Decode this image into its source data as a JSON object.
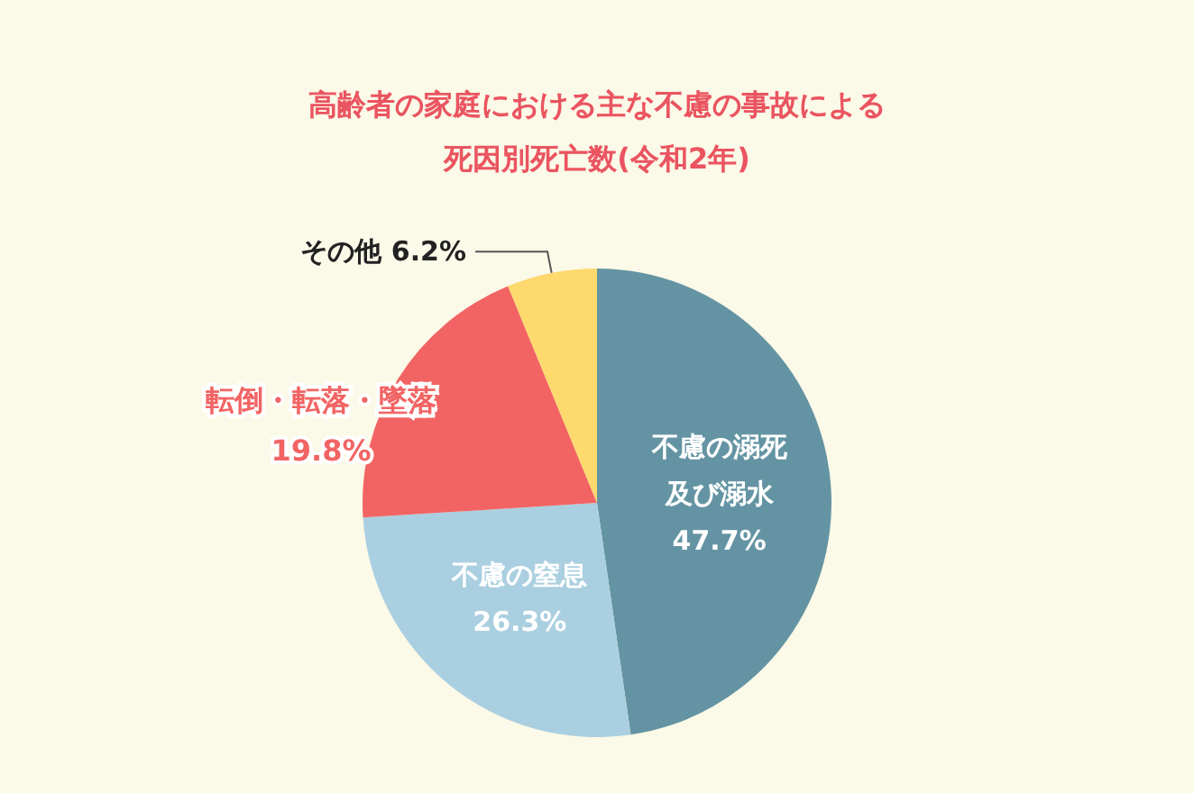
{
  "chart_data": {
    "type": "pie",
    "title": "高齢者の家庭における主な不慮の事故による死因別死亡数(令和2年)",
    "categories": [
      "不慮の溺死及び溺水",
      "不慮の窒息",
      "転倒・転落・墜落",
      "その他"
    ],
    "values": [
      47.7,
      26.3,
      19.8,
      6.2
    ],
    "value_labels": [
      "47.7%",
      "26.3%",
      "19.8%",
      "6.2%"
    ],
    "colors": [
      "#6494a3",
      "#aacfe0",
      "#f26464",
      "#fdd96e"
    ],
    "legend": false
  }
}
